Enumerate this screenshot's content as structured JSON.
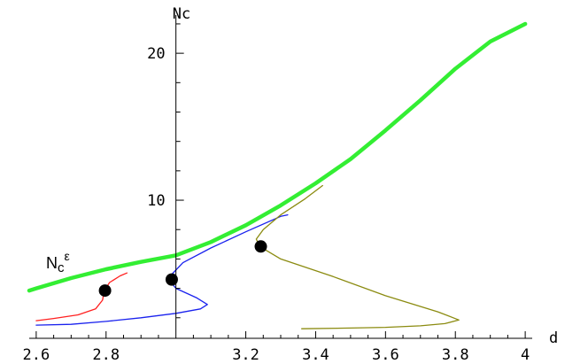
{
  "chart_data": {
    "type": "line",
    "xlabel": "d",
    "ylabel": "Nc",
    "xlim": [
      2.58,
      4.02
    ],
    "ylim": [
      0.6,
      22.6
    ],
    "axis_cross": {
      "x": 3.0,
      "y": 0.6
    },
    "grid": false,
    "x_ticks": [
      2.6,
      2.8,
      3.2,
      3.4,
      3.6,
      3.8,
      4.0
    ],
    "x_tick_labels": [
      "2.6",
      "2.8",
      "3.2",
      "3.4",
      "3.6",
      "3.8",
      "4"
    ],
    "x_minor_ticks": [
      2.65,
      2.7,
      2.75,
      2.85,
      2.9,
      2.95,
      3.05,
      3.1,
      3.15,
      3.25,
      3.3,
      3.35,
      3.45,
      3.5,
      3.55,
      3.65,
      3.7,
      3.75,
      3.85,
      3.9,
      3.95
    ],
    "y_ticks": [
      10,
      20
    ],
    "y_tick_labels": [
      "10",
      "20"
    ],
    "y_minor_ticks": [
      2,
      4,
      6,
      8,
      12,
      14,
      16,
      18,
      22
    ],
    "annotation": {
      "base": "N",
      "sub": "c",
      "sup": "ε"
    },
    "series": [
      {
        "color": "#33ee33",
        "width": 4.5,
        "points": [
          [
            2.58,
            3.85
          ],
          [
            2.6,
            4.0
          ],
          [
            2.7,
            4.7
          ],
          [
            2.8,
            5.3
          ],
          [
            2.9,
            5.8
          ],
          [
            3.0,
            6.25
          ],
          [
            3.1,
            7.15
          ],
          [
            3.2,
            8.3
          ],
          [
            3.3,
            9.65
          ],
          [
            3.4,
            11.15
          ],
          [
            3.5,
            12.8
          ],
          [
            3.6,
            14.75
          ],
          [
            3.7,
            16.8
          ],
          [
            3.8,
            18.95
          ],
          [
            3.9,
            20.8
          ],
          [
            4.0,
            22.0
          ]
        ]
      },
      {
        "color": "#ff2020",
        "width": 1.3,
        "points": [
          [
            2.6,
            1.8
          ],
          [
            2.65,
            1.95
          ],
          [
            2.72,
            2.2
          ],
          [
            2.77,
            2.6
          ],
          [
            2.79,
            3.2
          ],
          [
            2.795,
            3.85
          ],
          [
            2.81,
            4.4
          ],
          [
            2.84,
            4.85
          ],
          [
            2.86,
            5.05
          ]
        ]
      },
      {
        "color": "#1a22ee",
        "width": 1.3,
        "points": [
          [
            2.6,
            1.5
          ],
          [
            2.7,
            1.55
          ],
          [
            2.8,
            1.75
          ],
          [
            2.9,
            2.0
          ],
          [
            3.0,
            2.3
          ],
          [
            3.07,
            2.6
          ],
          [
            3.09,
            2.9
          ],
          [
            3.06,
            3.35
          ],
          [
            3.0,
            4.0
          ],
          [
            2.98,
            4.55
          ],
          [
            2.99,
            5.0
          ],
          [
            3.02,
            5.75
          ],
          [
            3.1,
            6.75
          ],
          [
            3.2,
            7.85
          ],
          [
            3.3,
            8.9
          ],
          [
            3.32,
            9.0
          ]
        ]
      },
      {
        "color": "#8b8b10",
        "width": 1.3,
        "points": [
          [
            3.36,
            1.25
          ],
          [
            3.5,
            1.3
          ],
          [
            3.6,
            1.35
          ],
          [
            3.7,
            1.45
          ],
          [
            3.77,
            1.6
          ],
          [
            3.81,
            1.85
          ],
          [
            3.75,
            2.4
          ],
          [
            3.6,
            3.5
          ],
          [
            3.45,
            4.8
          ],
          [
            3.3,
            6.0
          ],
          [
            3.24,
            6.85
          ],
          [
            3.23,
            7.35
          ],
          [
            3.25,
            8.0
          ],
          [
            3.3,
            9.0
          ],
          [
            3.37,
            10.1
          ],
          [
            3.42,
            11.0
          ]
        ]
      }
    ],
    "markers": [
      [
        2.797,
        3.85
      ],
      [
        2.988,
        4.6
      ],
      [
        3.243,
        6.85
      ]
    ]
  }
}
